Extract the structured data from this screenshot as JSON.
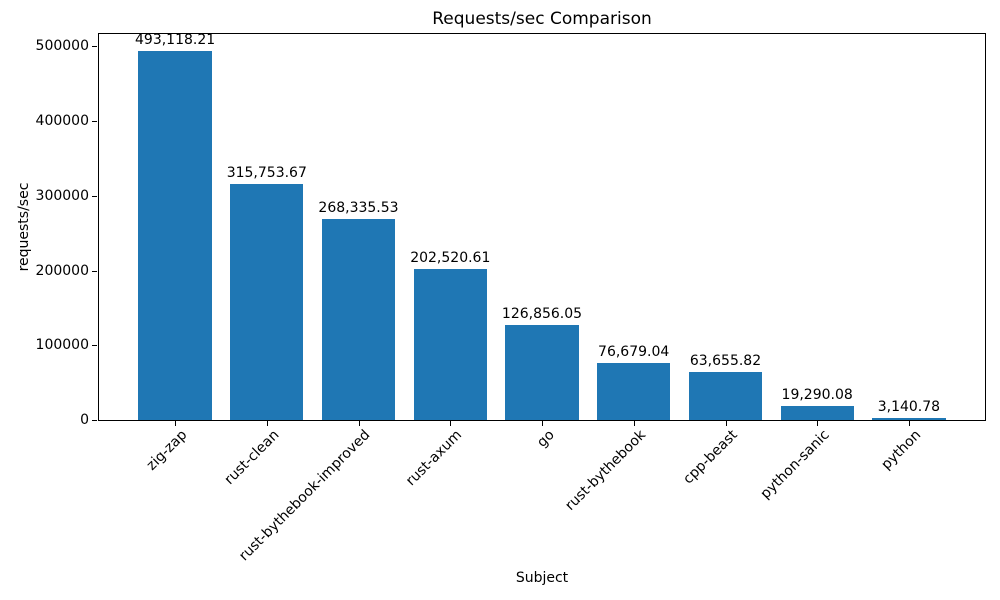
{
  "chart_data": {
    "type": "bar",
    "title": "Requests/sec Comparison",
    "xlabel": "Subject",
    "ylabel": "requests/sec",
    "categories": [
      "zig-zap",
      "rust-clean",
      "rust-bythebook-improved",
      "rust-axum",
      "go",
      "rust-bythebook",
      "cpp-beast",
      "python-sanic",
      "python"
    ],
    "values": [
      493118.21,
      315753.67,
      268335.53,
      202520.61,
      126856.05,
      76679.04,
      63655.82,
      19290.08,
      3140.78
    ],
    "value_labels": [
      "493,118.21",
      "315,753.67",
      "268,335.53",
      "202,520.61",
      "126,856.05",
      "76,679.04",
      "63,655.82",
      "19,290.08",
      "3,140.78"
    ],
    "y_ticks": [
      0,
      100000,
      200000,
      300000,
      400000,
      500000
    ],
    "y_tick_labels": [
      "0",
      "100000",
      "200000",
      "300000",
      "400000",
      "500000"
    ],
    "ylim": [
      0,
      517774
    ],
    "bar_color": "#1f77b4",
    "grid": false,
    "legend_position": "none",
    "x_tick_rotation_deg": 45
  }
}
